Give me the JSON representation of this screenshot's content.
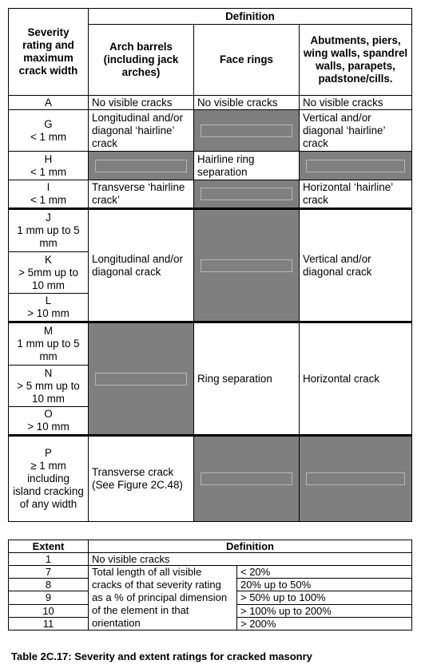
{
  "severity_table": {
    "severity_header": "Severity rating and maximum crack width",
    "definition_header": "Definition",
    "col_arch": "Arch barrels (including jack arches)",
    "col_face": "Face rings",
    "col_abut": "Abutments, piers, wing walls, spandrel walls, parapets, padstone/cills.",
    "rows": {
      "A": {
        "rating": "A",
        "arch": "No visible cracks",
        "face": "No visible cracks",
        "abut": "No visible cracks"
      },
      "G": {
        "rating": "G",
        "width": "< 1 mm",
        "arch": "Longitudinal and/or diagonal ‘hairline’ crack",
        "abut": "Vertical and/or diagonal ‘hairline’ crack"
      },
      "H": {
        "rating": "H",
        "width": "< 1 mm",
        "face": "Hairline ring separation"
      },
      "I": {
        "rating": "I",
        "width": "< 1 mm",
        "arch": "Transverse ‘hairline crack’",
        "abut": "Horizontal ‘hairline’ crack"
      },
      "J": {
        "rating": "J",
        "width": "1 mm up to 5 mm",
        "arch": "Longitudinal and/or diagonal crack",
        "abut": "Vertical and/or diagonal crack"
      },
      "K": {
        "rating": "K",
        "width": "> 5mm up to 10 mm"
      },
      "L": {
        "rating": "L",
        "width": "> 10 mm"
      },
      "M": {
        "rating": "M",
        "width": "1 mm up to 5 mm",
        "face": "Ring separation",
        "abut": "Horizontal crack"
      },
      "N": {
        "rating": "N",
        "width": "> 5 mm up to 10 mm"
      },
      "O": {
        "rating": "O",
        "width": "> 10 mm"
      },
      "P": {
        "rating": "P",
        "width": "≥ 1 mm including island cracking of any width",
        "arch": "Transverse crack (See Figure 2C.48)"
      }
    }
  },
  "extent_table": {
    "extent_header": "Extent",
    "definition_header": "Definition",
    "rows": [
      {
        "extent": "1",
        "definition": "No visible cracks"
      },
      {
        "extent": "7",
        "range": "< 20%"
      },
      {
        "extent": "8",
        "range": "20% up to 50%"
      },
      {
        "extent": "9",
        "range": "> 50% up to 100%"
      },
      {
        "extent": "10",
        "range": "> 100% up to 200%"
      },
      {
        "extent": "11",
        "range": "> 200%"
      }
    ],
    "shared_definition": "Total length of all visible cracks of that severity rating as a % of principal dimension of the element in that orientation"
  },
  "caption": "Table 2C.17:  Severity and extent ratings for cracked masonry"
}
